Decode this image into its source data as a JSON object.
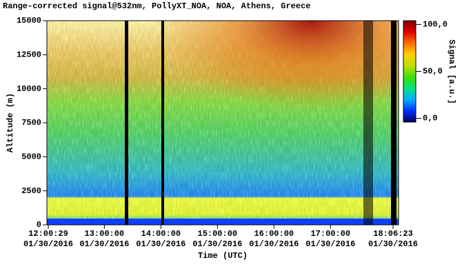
{
  "chart_data": {
    "type": "heatmap",
    "title": "Range-corrected signal@532nm, PollyXT_NOA, NOA, Athens, Greece",
    "xlabel": "Time (UTC)",
    "ylabel": "Altitude (m)",
    "xlim": [
      12.0081,
      18.1064
    ],
    "xticks": [
      {
        "value": 12.0081,
        "label": "12:00:29",
        "date": "01/30/2016"
      },
      {
        "value": 13,
        "label": "13:00:00",
        "date": "01/30/2016"
      },
      {
        "value": 14,
        "label": "14:00:00",
        "date": "01/30/2016"
      },
      {
        "value": 15,
        "label": "15:00:00",
        "date": "01/30/2016"
      },
      {
        "value": 16,
        "label": "16:00:00",
        "date": "01/30/2016"
      },
      {
        "value": 17,
        "label": "17:00:00",
        "date": "01/30/2016"
      },
      {
        "value": 18.1064,
        "label": "18:06:23",
        "date": "01/30/2016"
      }
    ],
    "ylim": [
      0,
      15000
    ],
    "yticks": [
      0,
      2500,
      5000,
      7500,
      10000,
      12500,
      15000
    ],
    "colorbar": {
      "label": "Signal [a.u.]",
      "clim": [
        -4,
        104
      ],
      "ticks": [
        {
          "value": 0,
          "label": "0,0"
        },
        {
          "value": 50,
          "label": "50,0"
        },
        {
          "value": 100,
          "label": "100,0"
        }
      ],
      "colors": [
        "#000060",
        "#0030ff",
        "#00b0ff",
        "#00e080",
        "#40e000",
        "#c0e000",
        "#ffd000",
        "#ff7000",
        "#e00000",
        "#800000"
      ]
    }
  }
}
